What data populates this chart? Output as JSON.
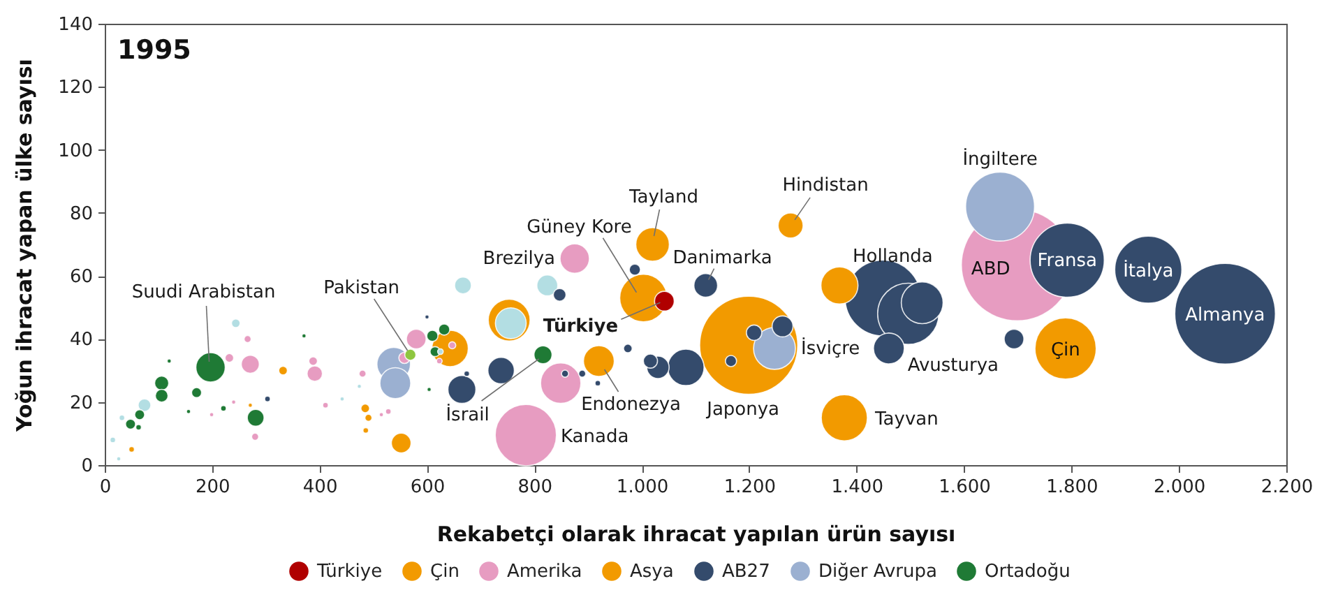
{
  "chart_data": {
    "type": "bubble",
    "title": "1995",
    "xlabel": "Rekabetçi olarak ihracat yapılan ürün sayısı",
    "ylabel": "Yoğun ihracat yapan ülke sayısı",
    "xlim": [
      0,
      2200
    ],
    "ylim": [
      0,
      140
    ],
    "xticks": [
      0,
      200,
      400,
      600,
      800,
      {
        "value": 1000,
        "label": "1.000"
      },
      {
        "value": 1200,
        "label": "1.200"
      },
      {
        "value": 1400,
        "label": "1.400"
      },
      {
        "value": 1600,
        "label": "1.600"
      },
      {
        "value": 1800,
        "label": "1.800"
      },
      {
        "value": 2000,
        "label": "2.000"
      },
      {
        "value": 2200,
        "label": "2.200"
      }
    ],
    "yticks": [
      0,
      20,
      40,
      60,
      80,
      100,
      120,
      140
    ],
    "legend": "bottom",
    "marker": "circle",
    "series": [
      {
        "name": "Türkiye",
        "color": "#b00000",
        "x": [
          1042
        ],
        "values": [
          52
        ],
        "sizes": [
          0.031
        ]
      },
      {
        "name": "Çin",
        "color": "#f29a00",
        "x": [
          1789
        ],
        "values": [
          37
        ],
        "sizes": [
          0.3
        ]
      },
      {
        "name": "Amerika",
        "color": "#e79cc1",
        "x": [
          1699,
          784,
          875,
          849,
          580,
          558,
          647,
          623,
          391,
          388,
          271,
          232,
          266,
          280,
          480,
          528,
          515,
          411,
          199,
          240
        ],
        "values": [
          63.5,
          9.5,
          65.5,
          26,
          40,
          34,
          38,
          33,
          29,
          33,
          32,
          34,
          40,
          9,
          29,
          17,
          16,
          19,
          16,
          20
        ],
        "sizes": [
          1,
          0.3,
          0.069,
          0.13,
          0.031,
          0.01,
          0.004,
          0.0025,
          0.019,
          0.006,
          0.026,
          0.006,
          0.004,
          0.004,
          0.004,
          0.0025,
          0.0014,
          0.0025,
          0.0014,
          0.0014
        ]
      },
      {
        "name": "Asya",
        "color": "#f29a00",
        "x": [
          1199,
          1003,
          1020,
          1277,
          1377,
          920,
          1368,
          753,
          643,
          552,
          485,
          491,
          486,
          332,
          50,
          271
        ],
        "values": [
          38,
          53,
          70,
          76,
          15,
          33,
          57,
          46,
          37,
          7,
          18,
          15,
          11,
          30,
          5,
          19
        ],
        "sizes": [
          0.77,
          0.18,
          0.09,
          0.05,
          0.17,
          0.076,
          0.11,
          0.14,
          0.106,
          0.031,
          0.006,
          0.004,
          0.0025,
          0.006,
          0.0025,
          0.0014
        ]
      },
      {
        "name": "AB27",
        "color": "#344b6c",
        "x": [
          2086,
          1943,
          1792,
          1449,
          1496,
          1522,
          1460,
          1693,
          1119,
          1262,
          1209,
          1166,
          1082,
          1030,
          1016,
          974,
          987,
          847,
          857,
          889,
          918,
          738,
          665,
          674,
          600,
          303
        ],
        "values": [
          48,
          62,
          65,
          53,
          48,
          51.5,
          37,
          40,
          57,
          44,
          42,
          33,
          31,
          31,
          33,
          37,
          62,
          54,
          29,
          29,
          26,
          30,
          24,
          29,
          47,
          21
        ],
        "sizes": [
          0.81,
          0.36,
          0.44,
          0.46,
          0.3,
          0.14,
          0.076,
          0.031,
          0.045,
          0.035,
          0.019,
          0.01,
          0.106,
          0.04,
          0.016,
          0.006,
          0.01,
          0.013,
          0.004,
          0.004,
          0.0025,
          0.056,
          0.0625,
          0.0025,
          0.0014,
          0.0025
        ]
      },
      {
        "name": "Diğer Avrupa",
        "color": "#9bb0d1",
        "x": [
          1667,
          1247,
          538,
          541
        ],
        "values": [
          82,
          37,
          32,
          26
        ],
        "sizes": [
          0.38,
          0.14,
          0.09,
          0.076
        ]
      },
      {
        "name": "Ortadoğu",
        "color": "#1f7a35",
        "x": [
          197,
          816,
          610,
          632,
          615,
          106,
          106,
          171,
          65,
          48,
          63,
          281,
          120,
          371,
          156,
          221,
          604
        ],
        "values": [
          31,
          35,
          41,
          43,
          36,
          26,
          22,
          23,
          16,
          13,
          12,
          15,
          33,
          41,
          17,
          18,
          24
        ],
        "sizes": [
          0.069,
          0.026,
          0.01,
          0.01,
          0.008,
          0.016,
          0.013,
          0.008,
          0.008,
          0.008,
          0.0025,
          0.0225,
          0.0014,
          0.0014,
          0.0014,
          0.0025,
          0.0014
        ]
      },
      {
        "color": "#b3dee3",
        "x": [
          756,
          824,
          667,
          244,
          74,
          32,
          15,
          26,
          625,
          474,
          442
        ],
        "values": [
          45,
          57,
          57,
          45,
          19,
          15,
          8,
          2,
          36,
          25,
          21
        ],
        "sizes": [
          0.076,
          0.035,
          0.0225,
          0.006,
          0.013,
          0.0025,
          0.0025,
          0.0014,
          0.0025,
          0.0014,
          0.0014
        ]
      },
      {
        "color": "#8ec63f",
        "x": [
          569
        ],
        "values": [
          35
        ],
        "sizes": [
          0.01
        ]
      }
    ],
    "annotations": [
      {
        "text": "Suudi Arabistan",
        "x": 197,
        "y": 31
      },
      {
        "text": "Pakistan",
        "x": 569,
        "y": 35
      },
      {
        "text": "Brezilya",
        "x": 875,
        "y": 65.5
      },
      {
        "text": "Güney Kore",
        "x": 1003,
        "y": 53
      },
      {
        "text": "Tayland",
        "x": 1020,
        "y": 70
      },
      {
        "text": "Hindistan",
        "x": 1277,
        "y": 76
      },
      {
        "text": "Danimarka",
        "x": 1119,
        "y": 57
      },
      {
        "text": "Hollanda",
        "x": 1449,
        "y": 53
      },
      {
        "text": "İngiltere",
        "x": 1667,
        "y": 82
      },
      {
        "text": "ABD",
        "x": 1699,
        "y": 63.5
      },
      {
        "text": "Fransa",
        "x": 1792,
        "y": 65
      },
      {
        "text": "İtalya",
        "x": 1943,
        "y": 62
      },
      {
        "text": "Almanya",
        "x": 2086,
        "y": 48
      },
      {
        "text": "Çin",
        "x": 1789,
        "y": 37
      },
      {
        "text": "Avusturya",
        "x": 1460,
        "y": 37
      },
      {
        "text": "Tayvan",
        "x": 1377,
        "y": 15
      },
      {
        "text": "İsviçre",
        "x": 1247,
        "y": 37
      },
      {
        "text": "Japonya",
        "x": 1199,
        "y": 38
      },
      {
        "text": "Endonezya",
        "x": 920,
        "y": 33
      },
      {
        "text": "İsrail",
        "x": 816,
        "y": 35
      },
      {
        "text": "Kanada",
        "x": 784,
        "y": 9.5
      },
      {
        "text": "Türkiye",
        "x": 1042,
        "y": 52
      }
    ]
  }
}
